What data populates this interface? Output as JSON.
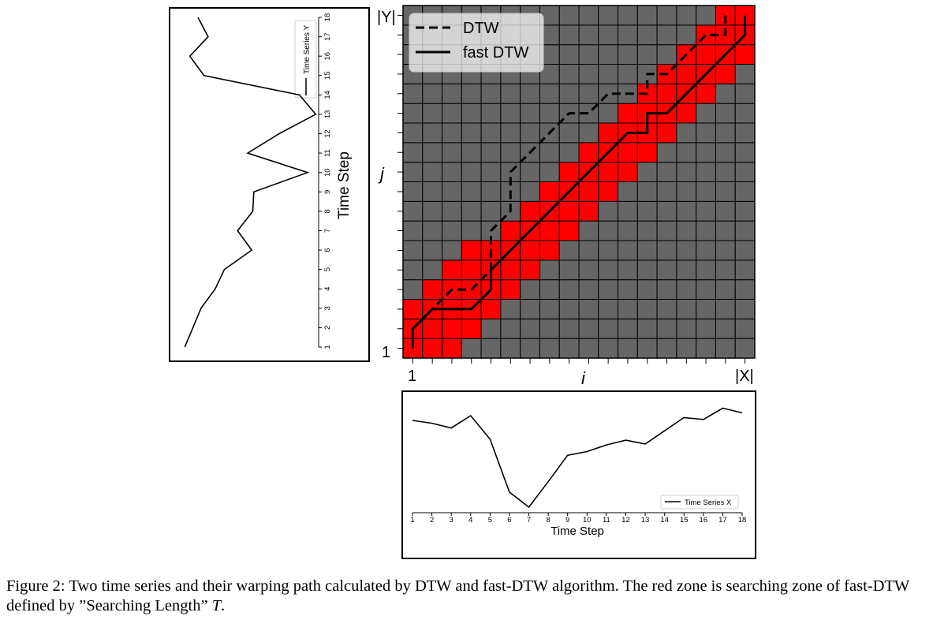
{
  "caption": {
    "label": "Figure 2:",
    "text": "Two time series and their warping path calculated by DTW and fast-DTW algorithm. The red zone is searching zone of fast-DTW defined by ”Searching Length”",
    "symbol": "T",
    "end": "."
  },
  "colors": {
    "zone": "#ff0000",
    "cell": "#666666",
    "grid": "#000000"
  },
  "chart_data": [
    {
      "type": "line",
      "title": "",
      "xlabel": "Time Step",
      "ylabel": "",
      "x": [
        1,
        2,
        3,
        4,
        5,
        6,
        7,
        8,
        9,
        10,
        11,
        12,
        13,
        14,
        15,
        16,
        17,
        18
      ],
      "series": [
        {
          "name": "Time Series X",
          "values": [
            0.92,
            0.89,
            0.84,
            0.97,
            0.72,
            0.16,
            0.0,
            0.27,
            0.55,
            0.59,
            0.66,
            0.71,
            0.67,
            0.81,
            0.95,
            0.93,
            1.05,
            1.0
          ]
        }
      ],
      "legend": "bottom-right"
    },
    {
      "type": "line",
      "title": "",
      "orientation": "vertical",
      "xlabel": "Time Step",
      "ylabel": "",
      "x": [
        1,
        2,
        3,
        4,
        5,
        6,
        7,
        8,
        9,
        10,
        11,
        12,
        13,
        14,
        15,
        16,
        17,
        18
      ],
      "series": [
        {
          "name": "Time Series Y",
          "values": [
            0.01,
            0.09,
            0.17,
            0.31,
            0.4,
            0.67,
            0.53,
            0.68,
            0.69,
            1.22,
            0.63,
            0.94,
            1.3,
            1.14,
            0.2,
            0.06,
            0.24,
            0.14
          ]
        }
      ],
      "legend": "top-right"
    },
    {
      "type": "heatmap",
      "title": "",
      "xlabel": "i",
      "ylabel": "j",
      "x_tick_labels": [
        "1",
        "|X|"
      ],
      "y_tick_labels": [
        "1",
        "|Y|"
      ],
      "grid_size": [
        18,
        18
      ],
      "legend": "top-left",
      "search_zone": [
        {
          "i": 1,
          "j_from": 1,
          "j_to": 3
        },
        {
          "i": 2,
          "j_from": 1,
          "j_to": 4
        },
        {
          "i": 3,
          "j_from": 1,
          "j_to": 5
        },
        {
          "i": 4,
          "j_from": 2,
          "j_to": 6
        },
        {
          "i": 5,
          "j_from": 3,
          "j_to": 6
        },
        {
          "i": 6,
          "j_from": 4,
          "j_to": 7
        },
        {
          "i": 7,
          "j_from": 5,
          "j_to": 8
        },
        {
          "i": 8,
          "j_from": 6,
          "j_to": 9
        },
        {
          "i": 9,
          "j_from": 7,
          "j_to": 10
        },
        {
          "i": 10,
          "j_from": 8,
          "j_to": 11
        },
        {
          "i": 11,
          "j_from": 9,
          "j_to": 12
        },
        {
          "i": 12,
          "j_from": 10,
          "j_to": 13
        },
        {
          "i": 13,
          "j_from": 11,
          "j_to": 14
        },
        {
          "i": 14,
          "j_from": 12,
          "j_to": 15
        },
        {
          "i": 15,
          "j_from": 13,
          "j_to": 16
        },
        {
          "i": 16,
          "j_from": 14,
          "j_to": 17
        },
        {
          "i": 17,
          "j_from": 15,
          "j_to": 18
        },
        {
          "i": 18,
          "j_from": 16,
          "j_to": 18
        }
      ],
      "series": [
        {
          "name": "DTW",
          "style": "dashed",
          "points": [
            [
              1,
              1
            ],
            [
              1,
              2
            ],
            [
              2,
              3
            ],
            [
              3,
              4
            ],
            [
              4,
              4
            ],
            [
              5,
              5
            ],
            [
              5,
              6
            ],
            [
              5,
              7
            ],
            [
              6,
              8
            ],
            [
              6,
              9
            ],
            [
              6,
              10
            ],
            [
              7,
              11
            ],
            [
              8,
              12
            ],
            [
              9,
              13
            ],
            [
              10,
              13
            ],
            [
              11,
              14
            ],
            [
              12,
              14
            ],
            [
              13,
              14
            ],
            [
              13,
              15
            ],
            [
              14,
              15
            ],
            [
              15,
              16
            ],
            [
              16,
              17
            ],
            [
              17,
              17
            ],
            [
              17,
              18
            ]
          ]
        },
        {
          "name": "fast DTW",
          "style": "solid",
          "points": [
            [
              1,
              1
            ],
            [
              1,
              2
            ],
            [
              2,
              3
            ],
            [
              3,
              3
            ],
            [
              4,
              3
            ],
            [
              5,
              4
            ],
            [
              5,
              5
            ],
            [
              6,
              6
            ],
            [
              7,
              7
            ],
            [
              8,
              8
            ],
            [
              9,
              9
            ],
            [
              10,
              10
            ],
            [
              11,
              11
            ],
            [
              12,
              12
            ],
            [
              13,
              12
            ],
            [
              13,
              13
            ],
            [
              14,
              13
            ],
            [
              15,
              14
            ],
            [
              16,
              15
            ],
            [
              17,
              16
            ],
            [
              18,
              17
            ],
            [
              18,
              18
            ]
          ]
        }
      ]
    }
  ]
}
